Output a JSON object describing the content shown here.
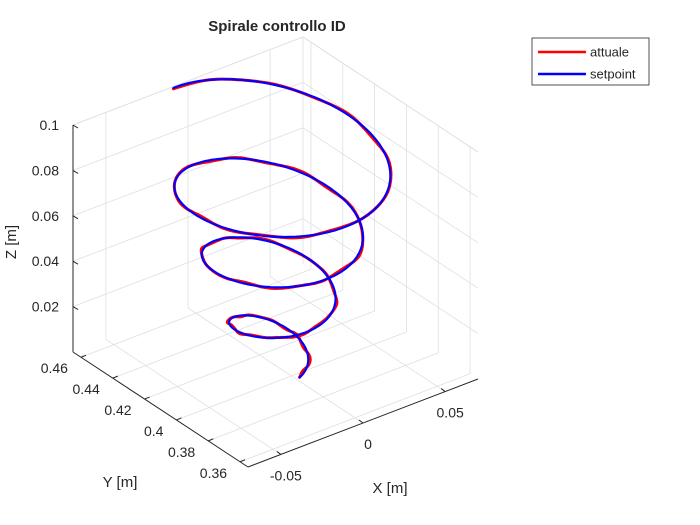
{
  "chart_data": {
    "type": "line3d",
    "title": "Spirale controllo ID",
    "xlabel": "X [m]",
    "ylabel": "Y [m]",
    "zlabel": "Z [m]",
    "xlim": [
      -0.07,
      0.07
    ],
    "ylim": [
      0.355,
      0.465
    ],
    "zlim": [
      0,
      0.1
    ],
    "xticks": [
      -0.05,
      0,
      0.05
    ],
    "xtick_labels": [
      "-0.05",
      "0",
      "0.05"
    ],
    "yticks": [
      0.36,
      0.38,
      0.4,
      0.42,
      0.44,
      0.46
    ],
    "ytick_labels": [
      "0.36",
      "0.38",
      "0.4",
      "0.42",
      "0.44",
      "0.46"
    ],
    "zticks": [
      0.02,
      0.04,
      0.06,
      0.08,
      0.1
    ],
    "ztick_labels": [
      "0.02",
      "0.04",
      "0.06",
      "0.08",
      "0.1"
    ],
    "grid": true,
    "legend_position": "top-right",
    "series": [
      {
        "name": "attuale",
        "color": "#ff0000",
        "curve": "helix",
        "center_x": 0.0,
        "center_y": 0.41,
        "z_start": 0.0,
        "z_end": 0.1,
        "radius_start": 0.013,
        "radius_end": 0.055,
        "turns": 3.5,
        "start_angle_deg": -80
      },
      {
        "name": "setpoint",
        "color": "#0000ff",
        "curve": "helix",
        "center_x": 0.0,
        "center_y": 0.41,
        "z_start": 0.0,
        "z_end": 0.1,
        "radius_start": 0.013,
        "radius_end": 0.055,
        "turns": 3.5,
        "start_angle_deg": -80
      }
    ]
  }
}
